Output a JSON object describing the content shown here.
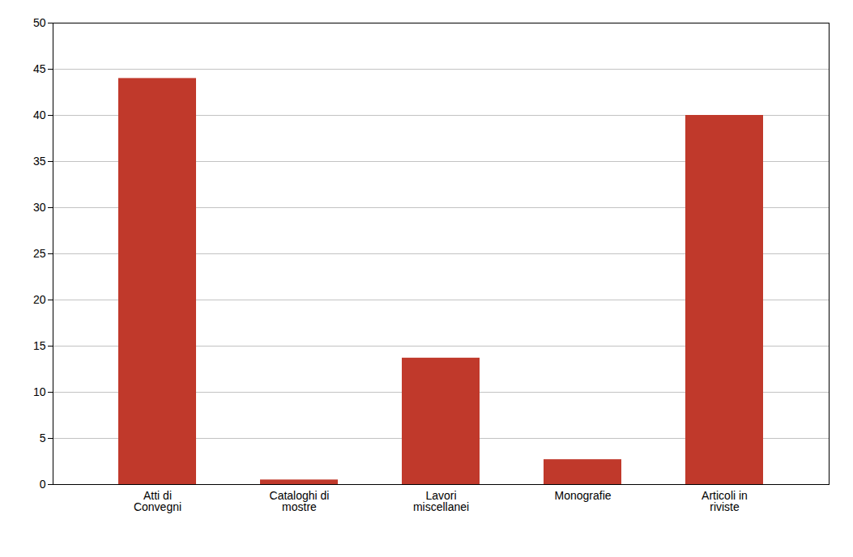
{
  "chart_data": {
    "type": "bar",
    "categories": [
      "Atti di\nConvegni",
      "Cataloghi di\nmostre",
      "Lavori\nmiscellanei",
      "Monografie",
      "Articoli in\nriviste"
    ],
    "values": [
      44,
      0.5,
      13.7,
      2.7,
      40
    ],
    "color": "#C0392B",
    "ylim": [
      0,
      50
    ],
    "yticks": [
      0,
      5,
      10,
      15,
      20,
      25,
      30,
      35,
      40,
      45,
      50
    ],
    "grid": true
  }
}
